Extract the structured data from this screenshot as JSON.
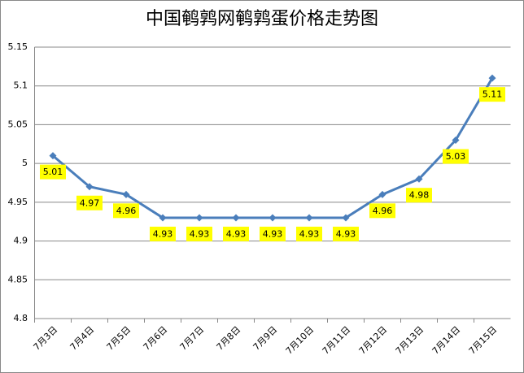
{
  "chart_data": {
    "type": "line",
    "title": "中国鹌鹑网鹌鹑蛋价格走势图",
    "categories": [
      "7月3日",
      "7月4日",
      "7月5日",
      "7月6日",
      "7月7日",
      "7月8日",
      "7月9日",
      "7月10日",
      "7月11日",
      "7月12日",
      "7月13日",
      "7月14日",
      "7月15日"
    ],
    "values": [
      5.01,
      4.97,
      4.96,
      4.93,
      4.93,
      4.93,
      4.93,
      4.93,
      4.93,
      4.96,
      4.98,
      5.03,
      5.11
    ],
    "color": "#4a7ebb",
    "label_color": "#ffff00",
    "title_color": "#e0201b",
    "ylim": [
      4.8,
      5.15
    ],
    "yticks": [
      4.8,
      4.85,
      4.9,
      4.95,
      5,
      5.05,
      5.1,
      5.15
    ],
    "grid": true
  }
}
